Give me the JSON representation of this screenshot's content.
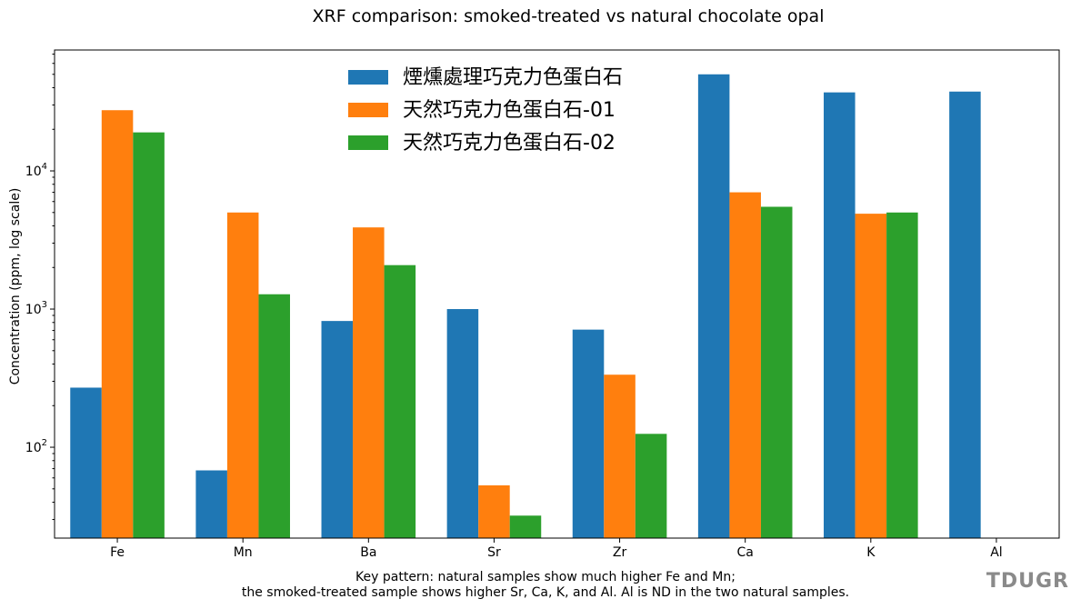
{
  "chart_data": {
    "type": "bar",
    "title": "XRF comparison: smoked-treated vs natural chocolate opal",
    "xlabel": "",
    "ylabel": "Concentration (ppm, log scale)",
    "yscale": "log",
    "ylim": [
      22,
      75000
    ],
    "yticks": [
      {
        "value": 100,
        "base": "10",
        "exp": "2"
      },
      {
        "value": 1000,
        "base": "10",
        "exp": "3"
      },
      {
        "value": 10000,
        "base": "10",
        "exp": "4"
      }
    ],
    "categories": [
      "Fe",
      "Mn",
      "Ba",
      "Sr",
      "Zr",
      "Ca",
      "K",
      "Al"
    ],
    "series": [
      {
        "name": "煙燻處理巧克力色蛋白石",
        "color": "#1f77b4",
        "values": [
          270,
          68,
          820,
          1000,
          710,
          50000,
          37000,
          37500
        ]
      },
      {
        "name": "天然巧克力色蛋白石-01",
        "color": "#ff7f0e",
        "values": [
          27500,
          5000,
          3900,
          53,
          335,
          7000,
          4900,
          null
        ]
      },
      {
        "name": "天然巧克力色蛋白石-02",
        "color": "#2ca02c",
        "values": [
          19000,
          1280,
          2080,
          32,
          125,
          5500,
          5000,
          null
        ]
      }
    ],
    "legend": "upper-center",
    "grid": false
  },
  "caption": {
    "line1": "Key pattern: natural samples show much higher Fe and Mn;",
    "line2": "the smoked-treated sample shows higher Sr, Ca, K, and Al. Al is ND in the two natural samples."
  },
  "watermark": "TDUGR"
}
